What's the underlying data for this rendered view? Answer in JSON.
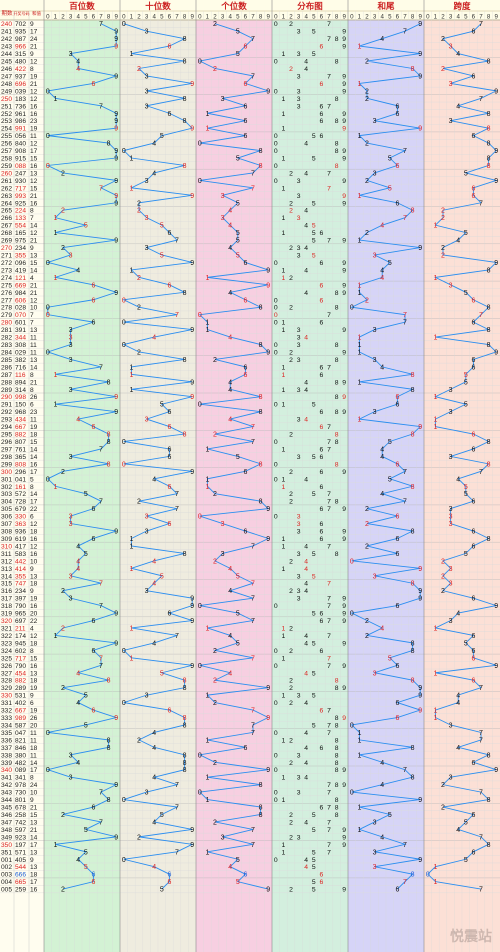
{
  "header": {
    "issue_label": "期数",
    "prize_label": "开奖号码",
    "sum_label": "和值",
    "groups": [
      "百位数",
      "十位数",
      "个位数",
      "分布图",
      "和尾",
      "跨度"
    ],
    "digits": [
      "0",
      "1",
      "2",
      "3",
      "4",
      "5",
      "6",
      "7",
      "8",
      "9"
    ]
  },
  "watermark": "悦震站",
  "colors": {
    "red": "#dd2222",
    "blue": "#1d5fd6",
    "line": "#2b8ef0",
    "group_bg": [
      "#d3f2d4",
      "#efecdf",
      "#f7cfe1",
      "#d3efde",
      "#d6d4f7",
      "#fce0d6"
    ],
    "header_bg": "#fffde8",
    "left_bg": "#fffdef"
  },
  "chart_data": {
    "type": "table",
    "title": "",
    "columns": [
      "期数",
      "开奖号码",
      "和值",
      "百位数",
      "十位数",
      "个位数",
      "分布图",
      "和尾",
      "跨度"
    ],
    "rows": [
      {
        "issue": "240",
        "num": "702",
        "sum": 9
      },
      {
        "issue": "241",
        "num": "935",
        "sum": 17
      },
      {
        "issue": "242",
        "num": "987",
        "sum": 24
      },
      {
        "issue": "243",
        "num": "966",
        "sum": 21
      },
      {
        "issue": "244",
        "num": "315",
        "sum": 9
      },
      {
        "issue": "245",
        "num": "480",
        "sum": 12
      },
      {
        "issue": "246",
        "num": "422",
        "sum": 8
      },
      {
        "issue": "247",
        "num": "937",
        "sum": 19
      },
      {
        "issue": "248",
        "num": "696",
        "sum": 21
      },
      {
        "issue": "249",
        "num": "039",
        "sum": 12
      },
      {
        "issue": "250",
        "num": "183",
        "sum": 12
      },
      {
        "issue": "251",
        "num": "736",
        "sum": 16
      },
      {
        "issue": "252",
        "num": "961",
        "sum": 16
      },
      {
        "issue": "253",
        "num": "986",
        "sum": 23
      },
      {
        "issue": "254",
        "num": "991",
        "sum": 19
      },
      {
        "issue": "255",
        "num": "056",
        "sum": 11
      },
      {
        "issue": "256",
        "num": "840",
        "sum": 12
      },
      {
        "issue": "257",
        "num": "908",
        "sum": 17
      },
      {
        "issue": "258",
        "num": "915",
        "sum": 15
      },
      {
        "issue": "259",
        "num": "088",
        "sum": 16
      },
      {
        "issue": "260",
        "num": "247",
        "sum": 13
      },
      {
        "issue": "261",
        "num": "930",
        "sum": 12
      },
      {
        "issue": "262",
        "num": "717",
        "sum": 15
      },
      {
        "issue": "263",
        "num": "993",
        "sum": 21
      },
      {
        "issue": "264",
        "num": "925",
        "sum": 16
      },
      {
        "issue": "265",
        "num": "224",
        "sum": 8
      },
      {
        "issue": "266",
        "num": "133",
        "sum": 7
      },
      {
        "issue": "267",
        "num": "554",
        "sum": 14
      },
      {
        "issue": "268",
        "num": "165",
        "sum": 12
      },
      {
        "issue": "269",
        "num": "975",
        "sum": 21
      },
      {
        "issue": "270",
        "num": "234",
        "sum": 9
      },
      {
        "issue": "271",
        "num": "355",
        "sum": 13
      },
      {
        "issue": "272",
        "num": "096",
        "sum": 15
      },
      {
        "issue": "273",
        "num": "419",
        "sum": 14
      },
      {
        "issue": "274",
        "num": "121",
        "sum": 4
      },
      {
        "issue": "275",
        "num": "669",
        "sum": 21
      },
      {
        "issue": "276",
        "num": "984",
        "sum": 21
      },
      {
        "issue": "277",
        "num": "606",
        "sum": 12
      },
      {
        "issue": "278",
        "num": "028",
        "sum": 10
      },
      {
        "issue": "279",
        "num": "070",
        "sum": 7
      },
      {
        "issue": "280",
        "num": "601",
        "sum": 7
      },
      {
        "issue": "281",
        "num": "391",
        "sum": 13
      },
      {
        "issue": "282",
        "num": "344",
        "sum": 11
      },
      {
        "issue": "283",
        "num": "308",
        "sum": 11
      },
      {
        "issue": "284",
        "num": "029",
        "sum": 11
      },
      {
        "issue": "285",
        "num": "382",
        "sum": 13
      },
      {
        "issue": "286",
        "num": "716",
        "sum": 14
      },
      {
        "issue": "287",
        "num": "116",
        "sum": 8
      },
      {
        "issue": "288",
        "num": "894",
        "sum": 21
      },
      {
        "issue": "289",
        "num": "314",
        "sum": 8
      },
      {
        "issue": "290",
        "num": "998",
        "sum": 26
      },
      {
        "issue": "291",
        "num": "150",
        "sum": 6
      },
      {
        "issue": "292",
        "num": "968",
        "sum": 23
      },
      {
        "issue": "293",
        "num": "434",
        "sum": 11
      },
      {
        "issue": "294",
        "num": "667",
        "sum": 19
      },
      {
        "issue": "295",
        "num": "882",
        "sum": 18
      },
      {
        "issue": "296",
        "num": "807",
        "sum": 15
      },
      {
        "issue": "297",
        "num": "761",
        "sum": 14
      },
      {
        "issue": "298",
        "num": "365",
        "sum": 14
      },
      {
        "issue": "299",
        "num": "808",
        "sum": 16
      },
      {
        "issue": "300",
        "num": "296",
        "sum": 17
      },
      {
        "issue": "301",
        "num": "041",
        "sum": 5
      },
      {
        "issue": "302",
        "num": "161",
        "sum": 8
      },
      {
        "issue": "303",
        "num": "572",
        "sum": 14
      },
      {
        "issue": "304",
        "num": "728",
        "sum": 17
      },
      {
        "issue": "305",
        "num": "679",
        "sum": 22
      },
      {
        "issue": "306",
        "num": "330",
        "sum": 6
      },
      {
        "issue": "307",
        "num": "363",
        "sum": 12
      },
      {
        "issue": "308",
        "num": "936",
        "sum": 18
      },
      {
        "issue": "309",
        "num": "619",
        "sum": 16
      },
      {
        "issue": "310",
        "num": "417",
        "sum": 12
      },
      {
        "issue": "311",
        "num": "583",
        "sum": 16
      },
      {
        "issue": "312",
        "num": "442",
        "sum": 10
      },
      {
        "issue": "313",
        "num": "414",
        "sum": 9
      },
      {
        "issue": "314",
        "num": "355",
        "sum": 13
      },
      {
        "issue": "315",
        "num": "747",
        "sum": 18
      },
      {
        "issue": "316",
        "num": "234",
        "sum": 9
      },
      {
        "issue": "317",
        "num": "397",
        "sum": 19
      },
      {
        "issue": "318",
        "num": "790",
        "sum": 16
      },
      {
        "issue": "319",
        "num": "965",
        "sum": 20
      },
      {
        "issue": "320",
        "num": "697",
        "sum": 22
      },
      {
        "issue": "321",
        "num": "211",
        "sum": 4
      },
      {
        "issue": "322",
        "num": "174",
        "sum": 12
      },
      {
        "issue": "323",
        "num": "945",
        "sum": 18
      },
      {
        "issue": "324",
        "num": "602",
        "sum": 8
      },
      {
        "issue": "325",
        "num": "717",
        "sum": 15
      },
      {
        "issue": "326",
        "num": "790",
        "sum": 16
      },
      {
        "issue": "327",
        "num": "454",
        "sum": 13
      },
      {
        "issue": "328",
        "num": "882",
        "sum": 18
      },
      {
        "issue": "329",
        "num": "289",
        "sum": 19
      },
      {
        "issue": "330",
        "num": "531",
        "sum": 9
      },
      {
        "issue": "331",
        "num": "402",
        "sum": 6
      },
      {
        "issue": "332",
        "num": "667",
        "sum": 19
      },
      {
        "issue": "333",
        "num": "989",
        "sum": 26
      },
      {
        "issue": "334",
        "num": "587",
        "sum": 20
      },
      {
        "issue": "335",
        "num": "047",
        "sum": 11
      },
      {
        "issue": "336",
        "num": "821",
        "sum": 11
      },
      {
        "issue": "337",
        "num": "846",
        "sum": 18
      },
      {
        "issue": "338",
        "num": "380",
        "sum": 11
      },
      {
        "issue": "339",
        "num": "482",
        "sum": 14
      },
      {
        "issue": "340",
        "num": "089",
        "sum": 17
      },
      {
        "issue": "341",
        "num": "341",
        "sum": 8
      },
      {
        "issue": "342",
        "num": "978",
        "sum": 24
      },
      {
        "issue": "343",
        "num": "730",
        "sum": 10
      },
      {
        "issue": "344",
        "num": "801",
        "sum": 9
      },
      {
        "issue": "345",
        "num": "678",
        "sum": 21
      },
      {
        "issue": "346",
        "num": "258",
        "sum": 15
      },
      {
        "issue": "347",
        "num": "742",
        "sum": 13
      },
      {
        "issue": "348",
        "num": "597",
        "sum": 21
      },
      {
        "issue": "349",
        "num": "923",
        "sum": 14
      },
      {
        "issue": "350",
        "num": "197",
        "sum": 17
      },
      {
        "issue": "351",
        "num": "571",
        "sum": 13
      },
      {
        "issue": "001",
        "num": "405",
        "sum": 9
      },
      {
        "issue": "002",
        "num": "544",
        "sum": 13
      },
      {
        "issue": "003",
        "num": "666",
        "sum": 18
      },
      {
        "issue": "004",
        "num": "665",
        "sum": 17
      },
      {
        "issue": "005",
        "num": "259",
        "sum": 16
      }
    ]
  }
}
